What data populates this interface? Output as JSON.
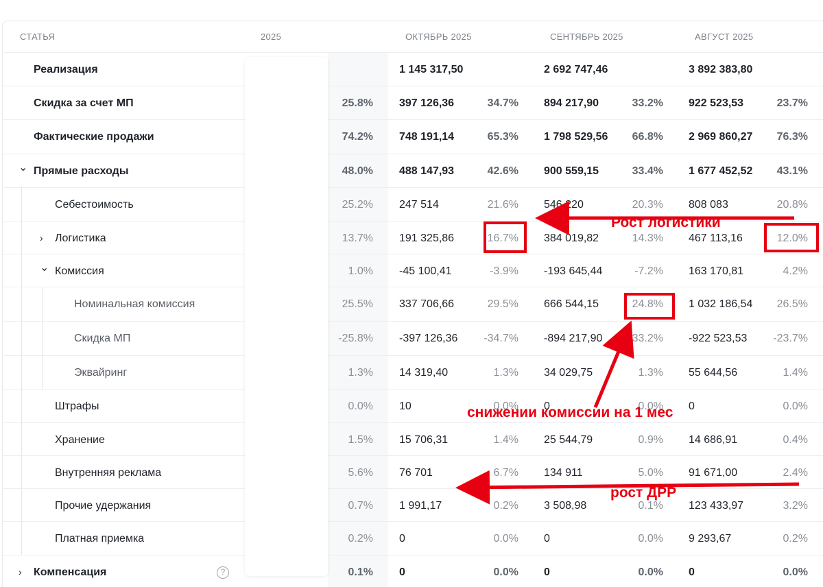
{
  "headers": {
    "article": "СТАТЬЯ",
    "year": "2025",
    "oct": "ОКТЯБРЬ 2025",
    "sep": "СЕНТЯБРЬ 2025",
    "aug": "АВГУСТ 2025"
  },
  "rows": [
    {
      "name": "Реализация",
      "y25": "",
      "oct_v": "1 145 317,50",
      "oct_p": "",
      "sep_v": "2 692 747,46",
      "sep_p": "",
      "aug_v": "3 892 383,80",
      "aug_p": ""
    },
    {
      "name": "Скидка за счет МП",
      "y25": "25.8%",
      "oct_v": "397 126,36",
      "oct_p": "34.7%",
      "sep_v": "894 217,90",
      "sep_p": "33.2%",
      "aug_v": "922 523,53",
      "aug_p": "23.7%"
    },
    {
      "name": "Фактические продажи",
      "y25": "74.2%",
      "oct_v": "748 191,14",
      "oct_p": "65.3%",
      "sep_v": "1 798 529,56",
      "sep_p": "66.8%",
      "aug_v": "2 969 860,27",
      "aug_p": "76.3%"
    },
    {
      "name": "Прямые расходы",
      "y25": "48.0%",
      "oct_v": "488 147,93",
      "oct_p": "42.6%",
      "sep_v": "900 559,15",
      "sep_p": "33.4%",
      "aug_v": "1 677 452,52",
      "aug_p": "43.1%"
    },
    {
      "name": "Себестоимость",
      "y25": "25.2%",
      "oct_v": "247 514",
      "oct_p": "21.6%",
      "sep_v": "546 220",
      "sep_p": "20.3%",
      "aug_v": "808 083",
      "aug_p": "20.8%"
    },
    {
      "name": "Логистика",
      "y25": "13.7%",
      "oct_v": "191 325,86",
      "oct_p": "16.7%",
      "sep_v": "384 019,82",
      "sep_p": "14.3%",
      "aug_v": "467 113,16",
      "aug_p": "12.0%"
    },
    {
      "name": "Комиссия",
      "y25": "1.0%",
      "oct_v": "-45 100,41",
      "oct_p": "-3.9%",
      "sep_v": "-193 645,44",
      "sep_p": "-7.2%",
      "aug_v": "163 170,81",
      "aug_p": "4.2%"
    },
    {
      "name": "Номинальная комиссия",
      "y25": "25.5%",
      "oct_v": "337 706,66",
      "oct_p": "29.5%",
      "sep_v": "666 544,15",
      "sep_p": "24.8%",
      "aug_v": "1 032 186,54",
      "aug_p": "26.5%"
    },
    {
      "name": "Скидка МП",
      "y25": "-25.8%",
      "oct_v": "-397 126,36",
      "oct_p": "-34.7%",
      "sep_v": "-894 217,90",
      "sep_p": "-33.2%",
      "aug_v": "-922 523,53",
      "aug_p": "-23.7%"
    },
    {
      "name": "Эквайринг",
      "y25": "1.3%",
      "oct_v": "14 319,40",
      "oct_p": "1.3%",
      "sep_v": "34 029,75",
      "sep_p": "1.3%",
      "aug_v": "55 644,56",
      "aug_p": "1.4%"
    },
    {
      "name": "Штрафы",
      "y25": "0.0%",
      "oct_v": "10",
      "oct_p": "0.0%",
      "sep_v": "0",
      "sep_p": "0.0%",
      "aug_v": "0",
      "aug_p": "0.0%"
    },
    {
      "name": "Хранение",
      "y25": "1.5%",
      "oct_v": "15 706,31",
      "oct_p": "1.4%",
      "sep_v": "25 544,79",
      "sep_p": "0.9%",
      "aug_v": "14 686,91",
      "aug_p": "0.4%"
    },
    {
      "name": "Внутренняя реклама",
      "y25": "5.6%",
      "oct_v": "76 701",
      "oct_p": "6.7%",
      "sep_v": "134 911",
      "sep_p": "5.0%",
      "aug_v": "91 671,00",
      "aug_p": "2.4%"
    },
    {
      "name": "Прочие удержания",
      "y25": "0.7%",
      "oct_v": "1 991,17",
      "oct_p": "0.2%",
      "sep_v": "3 508,98",
      "sep_p": "0.1%",
      "aug_v": "123 433,97",
      "aug_p": "3.2%"
    },
    {
      "name": "Платная приемка",
      "y25": "0.2%",
      "oct_v": "0",
      "oct_p": "0.0%",
      "sep_v": "0",
      "sep_p": "0.0%",
      "aug_v": "9 293,67",
      "aug_p": "0.2%"
    },
    {
      "name": "Компенсация",
      "y25": "0.1%",
      "oct_v": "0",
      "oct_p": "0.0%",
      "sep_v": "0",
      "sep_p": "0.0%",
      "aug_v": "0",
      "aug_p": "0.0%"
    }
  ],
  "annotations": {
    "logistics": "Рост логистики",
    "commission": "снижении комиссии на 1 мес",
    "drr": "рост ДРР"
  },
  "help_icon": "?",
  "colors": {
    "annotation_red": "#e60012",
    "header_gray": "#7b818a"
  }
}
